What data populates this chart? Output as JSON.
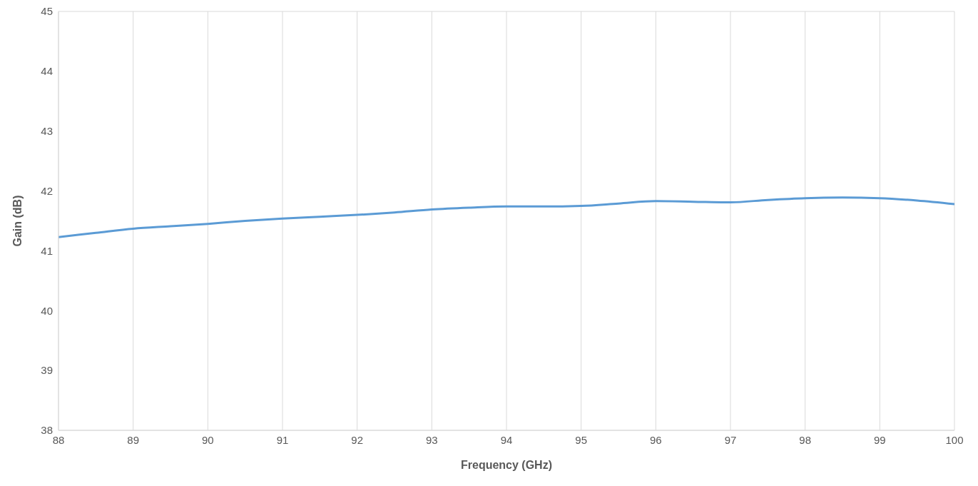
{
  "chart_data": {
    "type": "line",
    "xlabel": "Frequency (GHz)",
    "ylabel": "Gain (dB)",
    "x": [
      88,
      88.5,
      89,
      89.5,
      90,
      90.5,
      91,
      91.5,
      92,
      92.5,
      93,
      93.5,
      94,
      94.5,
      95,
      95.5,
      96,
      96.5,
      97,
      97.5,
      98,
      98.5,
      99,
      99.5,
      100
    ],
    "series": [
      {
        "color": "#5b9bd5",
        "values": [
          41.23,
          41.3,
          41.37,
          41.41,
          41.45,
          41.5,
          41.54,
          41.57,
          41.6,
          41.64,
          41.69,
          41.72,
          41.74,
          41.74,
          41.75,
          41.79,
          41.83,
          41.82,
          41.81,
          41.85,
          41.88,
          41.89,
          41.88,
          41.84,
          41.78
        ]
      }
    ],
    "xlim": [
      88,
      100
    ],
    "xticks": [
      88,
      89,
      90,
      91,
      92,
      93,
      94,
      95,
      96,
      97,
      98,
      99,
      100
    ],
    "ylim": [
      38,
      45
    ],
    "yticks": [
      38,
      39,
      40,
      41,
      42,
      43,
      44,
      45
    ],
    "grid": true,
    "legend": false,
    "marker": "none",
    "line_style": "solid"
  }
}
